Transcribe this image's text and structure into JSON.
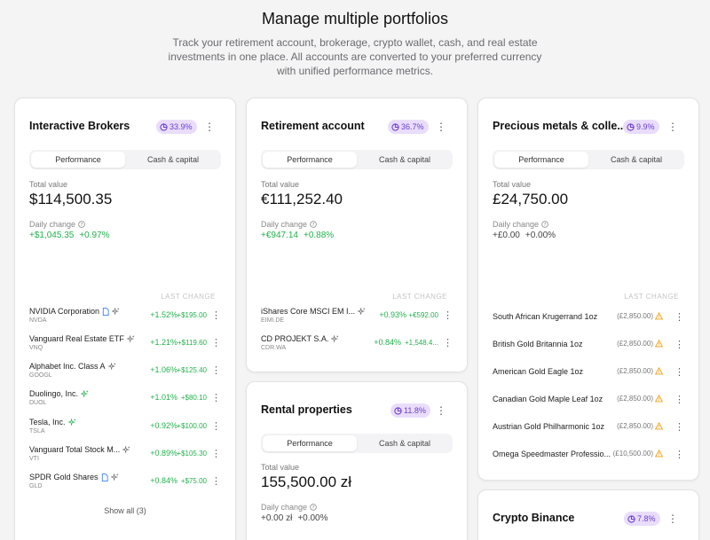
{
  "hero": {
    "title": "Manage multiple portfolios",
    "subtitle": "Track your retirement account, brokerage, crypto wallet, cash, and real estate investments in one place. All accounts are converted to your preferred currency with unified performance metrics."
  },
  "tabs": {
    "performance": "Performance",
    "cash": "Cash & capital"
  },
  "labels": {
    "total_value": "Total value",
    "daily_change": "Daily change",
    "last_change": "LAST CHANGE",
    "kebab": "⋮"
  },
  "colors": {
    "accent_badge_bg": "#e9ddfb",
    "accent_badge_fg": "#6d3fd0",
    "positive": "#22b14c",
    "warning": "#f59e0b"
  },
  "cards": {
    "ib": {
      "title": "Interactive Brokers",
      "badge": "33.9%",
      "total": "$114,500.35",
      "daily_abs": "+$1,045.35",
      "daily_pct": "+0.97%",
      "holdings": [
        {
          "name": "NVIDIA Corporation",
          "ticker": "NVDA",
          "pct": "+1.52%",
          "abs": "+$195.00"
        },
        {
          "name": "Vanguard Real Estate ETF",
          "ticker": "VNQ",
          "pct": "+1.21%",
          "abs": "+$119.60"
        },
        {
          "name": "Alphabet Inc. Class A",
          "ticker": "GOOGL",
          "pct": "+1.06%",
          "abs": "+$125.40"
        },
        {
          "name": "Duolingo, Inc.",
          "ticker": "DUOL",
          "pct": "+1.01%",
          "abs": "+$80.10"
        },
        {
          "name": "Tesla, Inc.",
          "ticker": "TSLA",
          "pct": "+0.92%",
          "abs": "+$100.00"
        },
        {
          "name": "Vanguard Total Stock M...",
          "ticker": "VTI",
          "pct": "+0.89%",
          "abs": "+$105.30"
        },
        {
          "name": "SPDR Gold Shares",
          "ticker": "GLD",
          "pct": "+0.84%",
          "abs": "+$75.00"
        }
      ],
      "show_all": "Show all (3)"
    },
    "ret": {
      "title": "Retirement account",
      "badge": "36.7%",
      "total": "€111,252.40",
      "daily_abs": "+€947.14",
      "daily_pct": "+0.88%",
      "holdings": [
        {
          "name": "iShares Core MSCI EM I...",
          "ticker": "EIMI.DE",
          "pct": "+0.93%",
          "abs": "+€592.00"
        },
        {
          "name": "CD PROJEKT S.A.",
          "ticker": "CDR.WA",
          "pct": "+0.84%",
          "abs": "+1,548.4..."
        }
      ]
    },
    "rent": {
      "title": "Rental properties",
      "badge": "11.8%",
      "total": "155,500.00 zł",
      "daily_abs": "+0.00 zł",
      "daily_pct": "+0.00%"
    },
    "metals": {
      "title": "Precious metals & colle...",
      "badge": "9.9%",
      "total": "£24,750.00",
      "daily_abs": "+£0.00",
      "daily_pct": "+0.00%",
      "holdings": [
        {
          "name": "South African Krugerrand 1oz",
          "val": "(£2,850.00)"
        },
        {
          "name": "British Gold Britannia 1oz",
          "val": "(£2,850.00)"
        },
        {
          "name": "American Gold Eagle 1oz",
          "val": "(£2,850.00)"
        },
        {
          "name": "Canadian Gold Maple Leaf 1oz",
          "val": "(£2,850.00)"
        },
        {
          "name": "Austrian Gold Philharmonic 1oz",
          "val": "(£2,850.00)"
        },
        {
          "name": "Omega Speedmaster Professio...",
          "val": "(£10,500.00)"
        }
      ]
    },
    "crypto": {
      "title": "Crypto Binance",
      "badge": "7.8%"
    }
  }
}
